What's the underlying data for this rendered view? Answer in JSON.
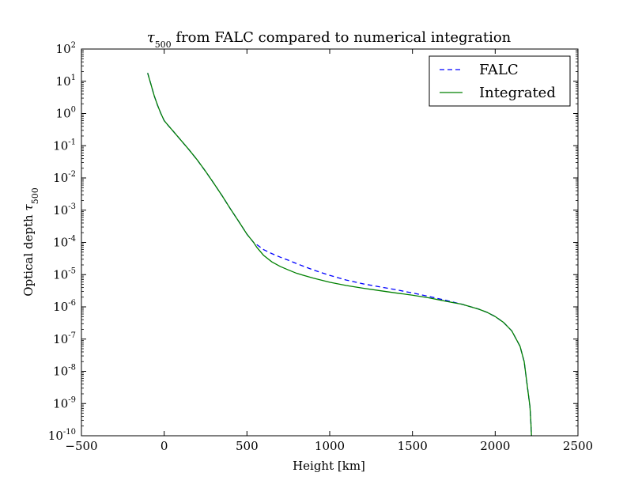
{
  "chart_data": {
    "type": "line",
    "title": "τ500 from FALC compared to numerical integration",
    "xlabel": "Height [km]",
    "ylabel": "Optical depth τ500",
    "xlim": [
      -500,
      2500
    ],
    "ylim": [
      1e-10,
      100
    ],
    "yscale": "log",
    "grid": false,
    "legend_position": "top-right",
    "x_ticks": [
      "−500",
      "0",
      "500",
      "1000",
      "1500",
      "2000",
      "2500"
    ],
    "y_ticks": [
      "10^2",
      "10^1",
      "10^0",
      "10^-1",
      "10^-2",
      "10^-3",
      "10^-4",
      "10^-5",
      "10^-6",
      "10^-7",
      "10^-8",
      "10^-9",
      "10^-10"
    ],
    "series": [
      {
        "name": "FALC",
        "color": "#0000ff",
        "style": "dashed",
        "x": [
          -100,
          -80,
          -60,
          -40,
          -20,
          0,
          25,
          50,
          100,
          150,
          200,
          250,
          300,
          350,
          400,
          450,
          500,
          540,
          560,
          600,
          650,
          700,
          750,
          800,
          900,
          1000,
          1100,
          1200,
          1300,
          1400,
          1500,
          1600,
          1700,
          1800,
          1900,
          1950,
          2000,
          2050,
          2100,
          2150,
          2175,
          2200,
          2210,
          2215,
          2220
        ],
        "y": [
          18,
          8,
          3.5,
          1.8,
          1.0,
          0.6,
          0.42,
          0.3,
          0.15,
          0.075,
          0.036,
          0.016,
          0.0068,
          0.0028,
          0.0011,
          0.00045,
          0.00018,
          0.0001,
          8.5e-05,
          6e-05,
          4.5e-05,
          3.5e-05,
          2.8e-05,
          2.2e-05,
          1.4e-05,
          9.5e-06,
          6.8e-06,
          5.2e-06,
          4.2e-06,
          3.4e-06,
          2.7e-06,
          2.1e-06,
          1.6e-06,
          1.2e-06,
          8.5e-07,
          6.8e-07,
          5e-07,
          3.3e-07,
          1.8e-07,
          6e-08,
          2e-08,
          2e-09,
          8e-10,
          3e-10,
          8e-11
        ]
      },
      {
        "name": "Integrated",
        "color": "#008000",
        "style": "solid",
        "x": [
          -100,
          -80,
          -60,
          -40,
          -20,
          0,
          25,
          50,
          100,
          150,
          200,
          250,
          300,
          350,
          400,
          450,
          500,
          540,
          560,
          600,
          650,
          700,
          750,
          800,
          900,
          1000,
          1100,
          1200,
          1300,
          1400,
          1500,
          1600,
          1700,
          1800,
          1900,
          1950,
          2000,
          2050,
          2100,
          2150,
          2175,
          2200,
          2210,
          2215,
          2220
        ],
        "y": [
          18,
          8,
          3.5,
          1.8,
          1.0,
          0.6,
          0.42,
          0.3,
          0.15,
          0.075,
          0.036,
          0.016,
          0.0068,
          0.0028,
          0.0011,
          0.00045,
          0.00018,
          0.0001,
          7e-05,
          4e-05,
          2.5e-05,
          1.8e-05,
          1.4e-05,
          1.1e-05,
          7.8e-06,
          5.8e-06,
          4.6e-06,
          3.8e-06,
          3.2e-06,
          2.7e-06,
          2.3e-06,
          1.9e-06,
          1.5e-06,
          1.2e-06,
          8.5e-07,
          6.8e-07,
          5e-07,
          3.3e-07,
          1.8e-07,
          6e-08,
          2e-08,
          2e-09,
          8e-10,
          3e-10,
          8e-11
        ]
      }
    ]
  }
}
